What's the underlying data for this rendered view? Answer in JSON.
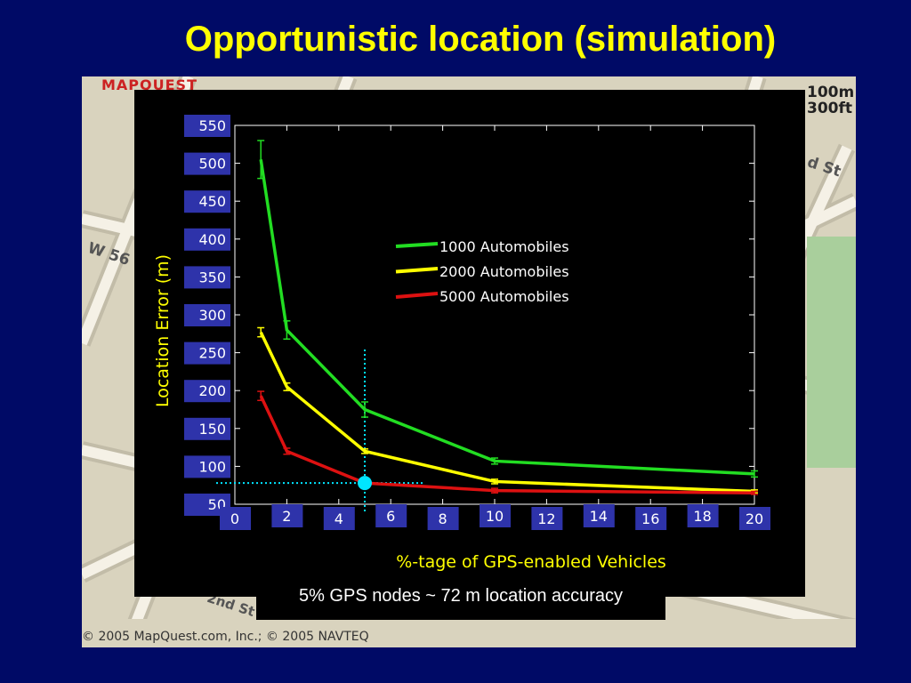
{
  "slide": {
    "title": "Opportunistic location (simulation)",
    "caption": "5% GPS nodes ~ 72 m location accuracy"
  },
  "map": {
    "brand": "MAPQUEST",
    "copyright": "© 2005 MapQuest.com, Inc.; © 2005 NAVTEQ",
    "scale_top": "100m",
    "scale_bottom": "300ft",
    "streets": [
      "W 56",
      "d St",
      "2nd St"
    ]
  },
  "chart_data": {
    "type": "line",
    "xlabel": "%-tage of GPS-enabled Vehicles",
    "ylabel": "Location Error (m)",
    "x_ticks": [
      "0",
      "2",
      "4",
      "6",
      "8",
      "10",
      "12",
      "14",
      "16",
      "18",
      "20"
    ],
    "y_ticks": [
      "50",
      "100",
      "150",
      "200",
      "250",
      "300",
      "350",
      "400",
      "450",
      "500",
      "550"
    ],
    "xlim": [
      0,
      20
    ],
    "ylim": [
      50,
      550
    ],
    "x": [
      1,
      2,
      5,
      10,
      20
    ],
    "series": [
      {
        "name": "1000 Automobiles",
        "color": "#22dd22",
        "values": [
          505,
          280,
          175,
          107,
          90
        ],
        "err": [
          25,
          12,
          10,
          4,
          4
        ]
      },
      {
        "name": "2000 Automobiles",
        "color": "#ffff00",
        "values": [
          277,
          205,
          120,
          80,
          67
        ],
        "err": [
          6,
          5,
          3,
          3,
          2
        ]
      },
      {
        "name": "5000 Automobiles",
        "color": "#dd1111",
        "values": [
          193,
          120,
          78,
          68,
          65
        ],
        "err": [
          6,
          4,
          2,
          3,
          2
        ]
      }
    ],
    "highlight": {
      "x": 5,
      "y": 78,
      "color": "#00e5ff"
    },
    "legend_position": "top-center",
    "grid": false
  }
}
